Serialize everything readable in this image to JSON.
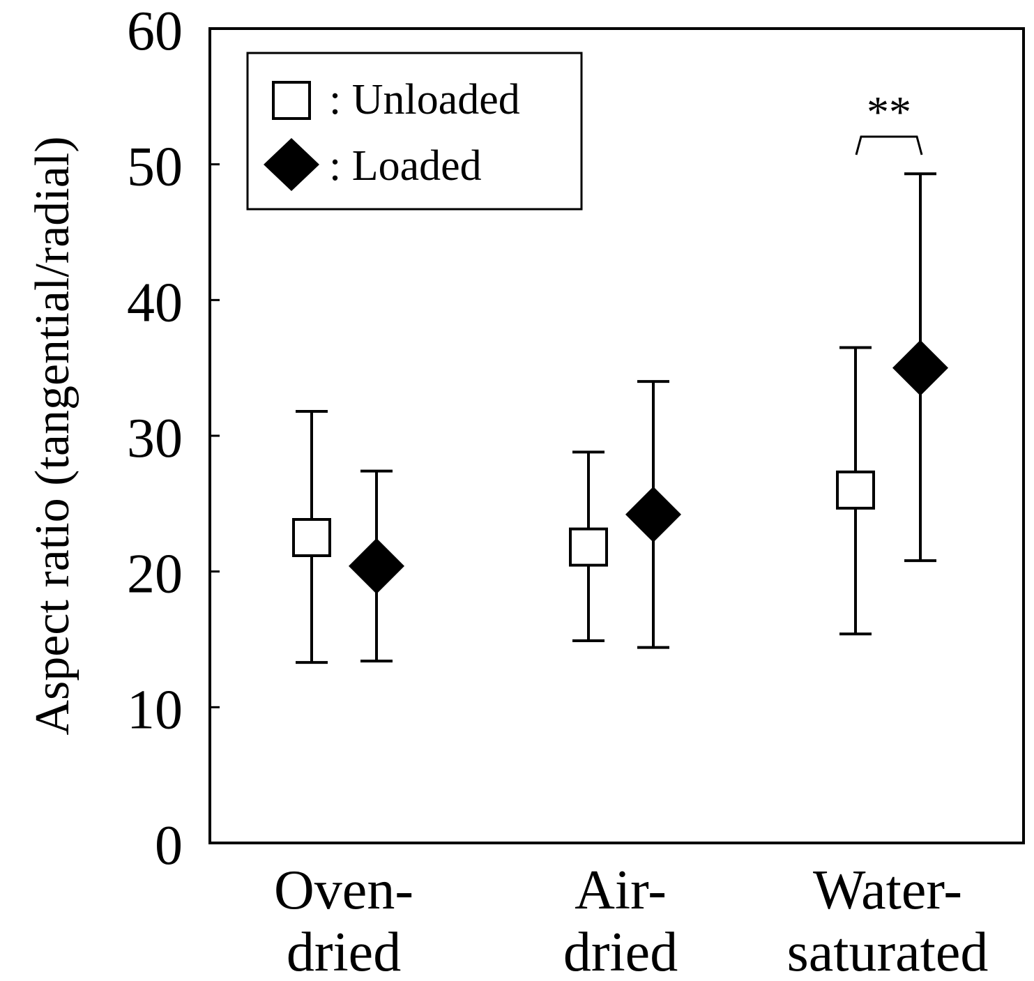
{
  "chart_data": {
    "type": "scatter",
    "subtype": "point-with-error-bars",
    "ylabel": "Aspect ratio (tangential/radial)",
    "xlabel": "",
    "ylim": [
      0,
      60
    ],
    "yticks": [
      0,
      10,
      20,
      30,
      40,
      50,
      60
    ],
    "categories": [
      {
        "line1": "Oven-",
        "line2": "dried"
      },
      {
        "line1": "Air-",
        "line2": "dried"
      },
      {
        "line1": "Water-",
        "line2": "saturated"
      }
    ],
    "series": [
      {
        "name": "Unloaded",
        "legend_label": ": Unloaded",
        "marker": "open-square",
        "values": [
          22.5,
          21.8,
          26.0
        ],
        "error_upper": [
          31.8,
          28.8,
          36.5
        ],
        "error_lower": [
          13.3,
          14.9,
          15.4
        ]
      },
      {
        "name": "Loaded",
        "legend_label": ": Loaded",
        "marker": "filled-diamond",
        "values": [
          20.4,
          24.2,
          35.0
        ],
        "error_upper": [
          27.4,
          34.0,
          49.3
        ],
        "error_lower": [
          13.4,
          14.4,
          20.8
        ]
      }
    ],
    "annotations": [
      {
        "text": "**",
        "category_index": 2,
        "bracket_between": [
          "Unloaded",
          "Loaded"
        ]
      }
    ],
    "legend": "top-left",
    "grid": false
  }
}
